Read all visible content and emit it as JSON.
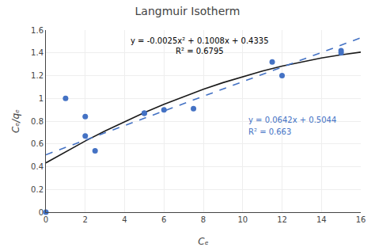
{
  "chart_data": {
    "type": "scatter",
    "title": "Langmuir Isotherm",
    "xlabel": "Cₑ",
    "ylabel": "Cₑ/qₑ",
    "series": [
      {
        "type": "line",
        "color": "#1a1a1a",
        "line_style": "solid",
        "x": [
          0,
          1,
          2,
          3,
          4,
          5,
          6,
          7,
          8,
          9,
          10,
          11,
          12,
          13,
          14,
          15,
          16
        ],
        "values": [
          0.4335,
          0.5318,
          0.6251,
          0.7134,
          0.7967,
          0.875,
          0.9483,
          1.0166,
          1.0799,
          1.1382,
          1.1915,
          1.2398,
          1.2831,
          1.3214,
          1.3547,
          1.383,
          1.4063
        ]
      },
      {
        "type": "line",
        "color": "#4472C4",
        "line_style": "dashed",
        "x": [
          0,
          16
        ],
        "values": [
          0.5044,
          1.5316
        ]
      },
      {
        "type": "scatter",
        "color": "#4472C4",
        "marker": "circle",
        "x": [
          0,
          1,
          2,
          2,
          2.5,
          5,
          5,
          6,
          7.5,
          11.5,
          12,
          15,
          15
        ],
        "values": [
          0.0,
          1.0,
          0.84,
          0.67,
          0.54,
          0.87,
          0.87,
          0.9,
          0.91,
          1.32,
          1.2,
          1.4,
          1.42
        ]
      }
    ],
    "annotations": [
      {
        "text": "y = -0.0025x² + 0.1008x + 0.4335",
        "color": "#000000"
      },
      {
        "text": "R² = 0.6795",
        "color": "#000000"
      },
      {
        "text": "y = 0.0642x + 0.5044",
        "color": "#4472C4"
      },
      {
        "text": "R² = 0.663",
        "color": "#4472C4"
      }
    ],
    "xlim": [
      0,
      16
    ],
    "ylim": [
      0,
      1.6
    ],
    "xticks": [
      0,
      2,
      4,
      6,
      8,
      10,
      12,
      14,
      16
    ],
    "yticks": [
      0,
      0.2,
      0.4,
      0.6,
      0.8,
      1,
      1.2,
      1.4,
      1.6
    ],
    "grid": true
  }
}
